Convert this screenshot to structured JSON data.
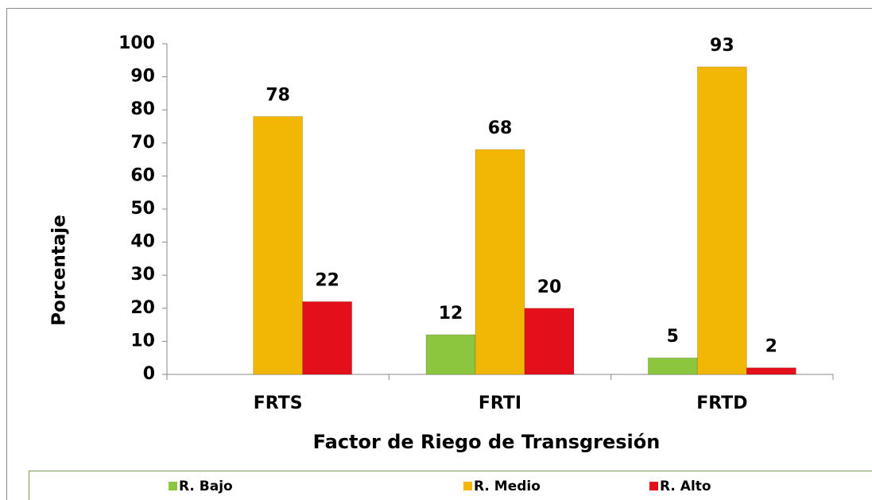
{
  "chart_data": {
    "type": "bar",
    "x_label": "Factor de Riego de Transgresión",
    "y_label": "Porcentaje",
    "categories": [
      "FRTS",
      "FRTI",
      "FRTD"
    ],
    "series": [
      {
        "name": "R. Bajo",
        "color": "#8cc63f",
        "values": [
          null,
          12,
          5
        ]
      },
      {
        "name": "R. Medio",
        "color": "#f2b705",
        "values": [
          78,
          68,
          93
        ]
      },
      {
        "name": "R. Alto",
        "color": "#e3101b",
        "values": [
          22,
          20,
          2
        ]
      }
    ],
    "ylim": [
      0,
      100
    ],
    "yticks": [
      0,
      10,
      20,
      30,
      40,
      50,
      60,
      70,
      80,
      90,
      100
    ],
    "legend": "bottom"
  }
}
